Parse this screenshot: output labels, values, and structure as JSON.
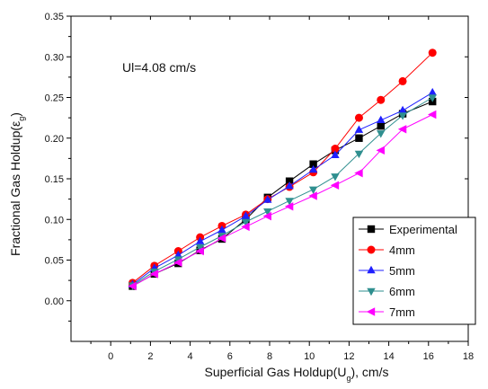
{
  "chart_data": {
    "type": "line",
    "annotation": "Ul=4.08 cm/s",
    "xlabel": "Superficial Gas Holdup(U",
    "xlabel_sub": "g",
    "xlabel_suffix": "), cm/s",
    "ylabel": "Fractional Gas Holdup(ε",
    "ylabel_sub": "g",
    "ylabel_suffix": ")",
    "xlim": [
      -2,
      18
    ],
    "ylim": [
      -0.05,
      0.35
    ],
    "xticks": [
      0,
      2,
      4,
      6,
      8,
      10,
      12,
      14,
      16,
      18
    ],
    "yticks": [
      0.0,
      0.05,
      0.1,
      0.15,
      0.2,
      0.25,
      0.3,
      0.35
    ],
    "xtick_labels": [
      "0",
      "2",
      "4",
      "6",
      "8",
      "10",
      "12",
      "14",
      "16",
      "18"
    ],
    "ytick_labels": [
      "0.00",
      "0.05",
      "0.10",
      "0.15",
      "0.20",
      "0.25",
      "0.30",
      "0.35"
    ],
    "x": [
      1.1,
      2.2,
      3.4,
      4.5,
      5.6,
      6.8,
      7.9,
      9.0,
      10.2,
      11.3,
      12.5,
      13.6,
      14.7,
      16.2
    ],
    "legend_position": "bottom-right",
    "series": [
      {
        "name": "Experimental",
        "marker": "square",
        "color": "#000000",
        "values": [
          0.018,
          0.033,
          0.046,
          0.062,
          0.076,
          0.1,
          0.127,
          0.147,
          0.168,
          0.185,
          0.2,
          0.215,
          0.23,
          0.245
        ]
      },
      {
        "name": "4mm",
        "marker": "circle",
        "color": "#ff0000",
        "values": [
          0.022,
          0.043,
          0.061,
          0.078,
          0.092,
          0.106,
          0.125,
          0.14,
          0.158,
          0.187,
          0.225,
          0.247,
          0.27,
          0.305
        ]
      },
      {
        "name": "5mm",
        "marker": "triangle-up",
        "color": "#1f1fff",
        "values": [
          0.02,
          0.04,
          0.056,
          0.073,
          0.087,
          0.104,
          0.124,
          0.141,
          0.161,
          0.179,
          0.21,
          0.222,
          0.234,
          0.256
        ]
      },
      {
        "name": "6mm",
        "marker": "triangle-down",
        "color": "#2f8f8f",
        "values": [
          0.019,
          0.036,
          0.051,
          0.066,
          0.08,
          0.097,
          0.11,
          0.123,
          0.137,
          0.153,
          0.181,
          0.206,
          0.228,
          0.25
        ]
      },
      {
        "name": "7mm",
        "marker": "triangle-left",
        "color": "#ff00ff",
        "values": [
          0.018,
          0.033,
          0.047,
          0.061,
          0.077,
          0.091,
          0.104,
          0.116,
          0.129,
          0.142,
          0.157,
          0.185,
          0.211,
          0.229
        ]
      }
    ]
  }
}
